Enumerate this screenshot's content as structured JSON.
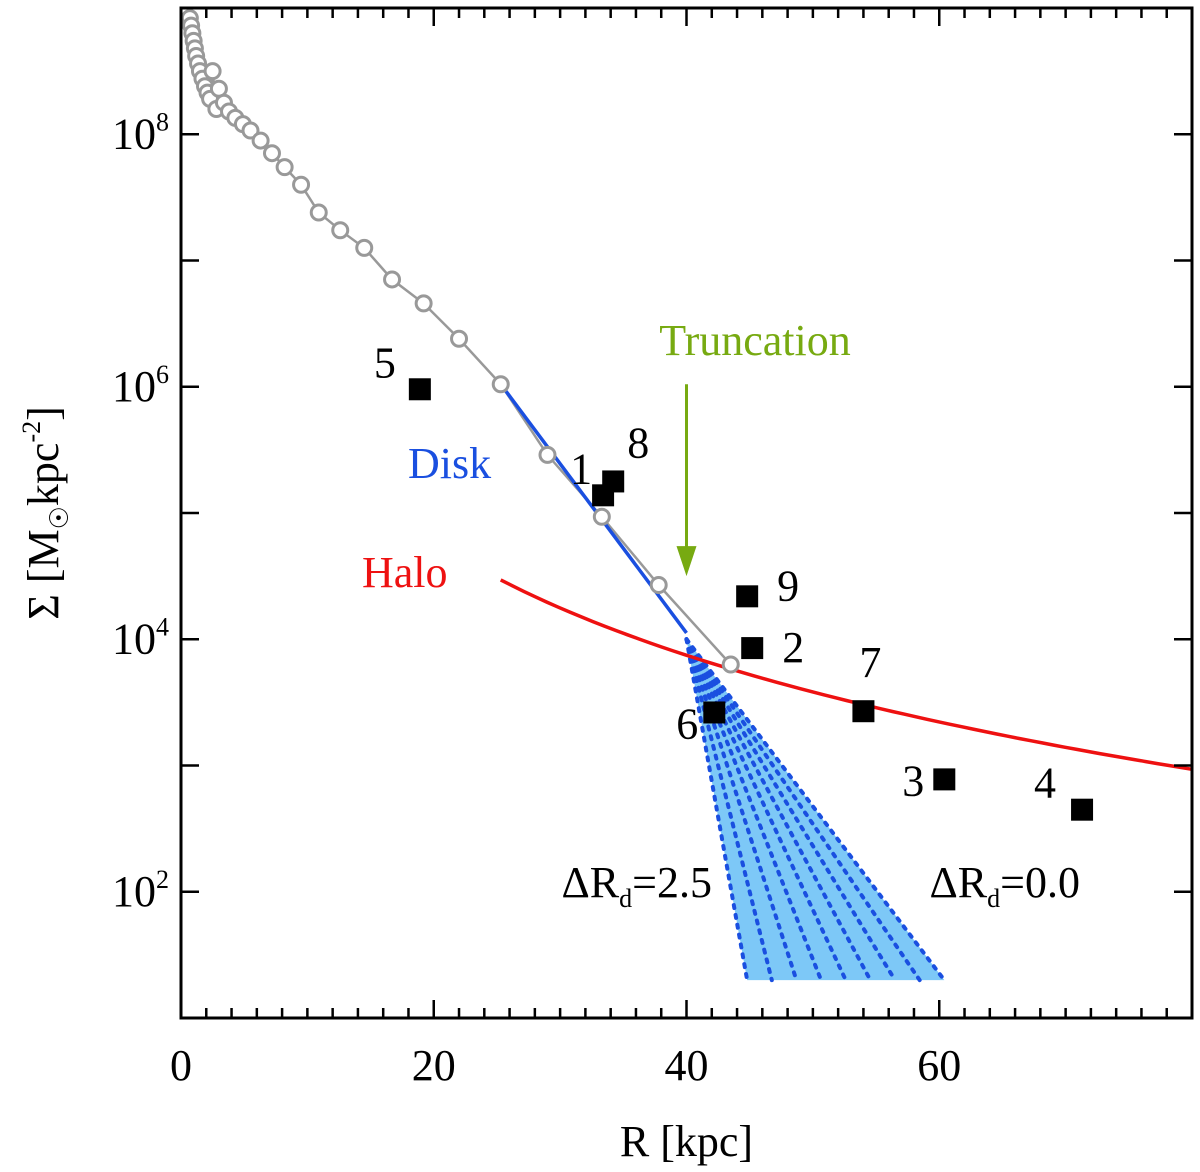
{
  "chart_data": {
    "type": "scatter",
    "xlabel": "R [kpc]",
    "ylabel_parts": {
      "sigma": "Σ [M",
      "sun": "☉",
      "mid": "kpc",
      "exp": "-2",
      "close": "]"
    },
    "xlim": [
      0,
      80
    ],
    "ylim_log10": [
      1.0,
      9.0
    ],
    "y_scale": "log",
    "grid": false,
    "x_ticks": [
      {
        "value": 0,
        "label": "0"
      },
      {
        "value": 20,
        "label": "20"
      },
      {
        "value": 40,
        "label": "40"
      },
      {
        "value": 60,
        "label": "60"
      }
    ],
    "y_ticks": [
      {
        "value": 2,
        "base": "10",
        "exp": "2"
      },
      {
        "value": 4,
        "base": "10",
        "exp": "4"
      },
      {
        "value": 6,
        "base": "10",
        "exp": "6"
      },
      {
        "value": 8,
        "base": "10",
        "exp": "8"
      }
    ],
    "colors": {
      "profile": "#999999",
      "disk": "#1a4fe0",
      "halo": "#ee1111",
      "truncation": "#77aa11",
      "fan": "#7dc8f7",
      "fan_line": "#1a4fe0",
      "points": "#000000"
    },
    "profile": {
      "r": [
        0.7,
        0.8,
        0.9,
        1.0,
        1.1,
        1.2,
        1.35,
        1.5,
        1.7,
        1.9,
        2.1,
        2.3,
        2.5,
        2.8,
        3.0,
        3.4,
        3.8,
        4.3,
        4.9,
        5.5,
        6.3,
        7.2,
        8.2,
        9.5,
        10.9,
        12.6,
        14.5,
        16.7,
        19.2,
        22.0,
        25.3,
        29.0,
        33.3,
        37.8,
        43.5
      ],
      "log_sigma": [
        8.92,
        8.86,
        8.8,
        8.74,
        8.68,
        8.62,
        8.56,
        8.5,
        8.44,
        8.38,
        8.33,
        8.28,
        8.5,
        8.2,
        8.36,
        8.25,
        8.18,
        8.13,
        8.08,
        8.03,
        7.95,
        7.85,
        7.74,
        7.6,
        7.38,
        7.24,
        7.1,
        6.85,
        6.66,
        6.38,
        6.02,
        5.46,
        4.97,
        4.43,
        3.8
      ]
    },
    "disk": {
      "r_start": 25.3,
      "log_sigma_start": 6.02,
      "r_end": 40.0,
      "log_sigma_end": 4.05
    },
    "halo": {
      "r_start": 25.3,
      "log_sigma_start": 4.47,
      "r_end": 80.0,
      "log_sigma_end": 2.97
    },
    "truncation": {
      "label": "Truncation",
      "r": 40.0,
      "log_sigma_top": 6.02,
      "log_sigma_tip": 4.5
    },
    "fan": {
      "r_start": 40.0,
      "log_sigma_apex": 4.0,
      "log_sigma_floor": 1.3,
      "r_floor_min": 44.8,
      "r_floor_max": 60.4,
      "n_lines": 9,
      "label_left": {
        "base": "ΔR",
        "sub": "d",
        "rest": "=2.5"
      },
      "label_right": {
        "base": "ΔR",
        "sub": "d",
        "rest": "=0.0"
      }
    },
    "labels": {
      "disk": "Disk",
      "halo": "Halo"
    },
    "points": [
      {
        "id": "1",
        "r": 33.4,
        "log_sigma": 5.14
      },
      {
        "id": "2",
        "r": 45.2,
        "log_sigma": 3.93
      },
      {
        "id": "3",
        "r": 60.4,
        "log_sigma": 2.89
      },
      {
        "id": "4",
        "r": 71.3,
        "log_sigma": 2.65
      },
      {
        "id": "5",
        "r": 18.9,
        "log_sigma": 5.98
      },
      {
        "id": "6",
        "r": 42.2,
        "log_sigma": 3.42
      },
      {
        "id": "7",
        "r": 54.0,
        "log_sigma": 3.43
      },
      {
        "id": "8",
        "r": 34.2,
        "log_sigma": 5.25
      },
      {
        "id": "9",
        "r": 44.8,
        "log_sigma": 4.34
      }
    ]
  }
}
